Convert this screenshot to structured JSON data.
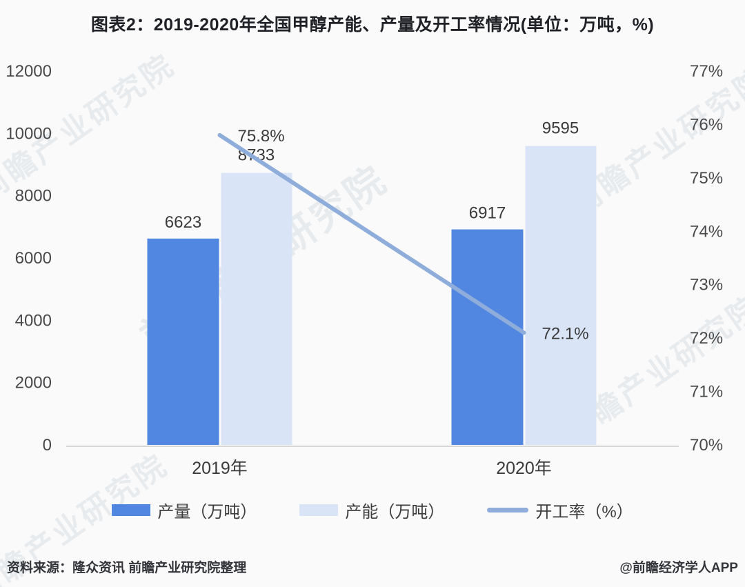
{
  "title": "图表2：2019-2020年全国甲醇产能、产量及开工率情况(单位：万吨，%)",
  "chart_data": {
    "type": "bar",
    "subtype": "grouped-bars-with-line",
    "categories": [
      "2019年",
      "2020年"
    ],
    "series": [
      {
        "name": "产量（万吨）",
        "type": "bar",
        "axis": "left",
        "color": "#5287e1",
        "values": [
          6623,
          6917
        ],
        "labels": [
          "6623",
          "6917"
        ]
      },
      {
        "name": "产能（万吨）",
        "type": "bar",
        "axis": "left",
        "color": "#d9e4f6",
        "values": [
          8733,
          9595
        ],
        "labels": [
          "8733",
          "9595"
        ]
      },
      {
        "name": "开工率（%）",
        "type": "line",
        "axis": "right",
        "color": "#8fadda",
        "values": [
          75.8,
          72.1
        ],
        "labels": [
          "75.8%",
          "72.1%"
        ]
      }
    ],
    "left_axis": {
      "min": 0,
      "max": 12000,
      "step": 2000,
      "ticks": [
        "0",
        "2000",
        "4000",
        "6000",
        "8000",
        "10000",
        "12000"
      ]
    },
    "right_axis": {
      "min": 70,
      "max": 77,
      "step": 1,
      "ticks": [
        "70%",
        "71%",
        "72%",
        "73%",
        "74%",
        "75%",
        "76%",
        "77%"
      ]
    },
    "grid": false,
    "legend_position": "bottom",
    "axis_line_color": "#d7d7d7",
    "tick_label_color": "#48494b",
    "data_label_color": "#3a3a3a"
  },
  "footer": {
    "source": "资料来源：隆众资讯 前瞻产业研究院整理",
    "credit": "@前瞻经济学人APP"
  },
  "watermark": {
    "text": "前瞻产业研究院"
  }
}
